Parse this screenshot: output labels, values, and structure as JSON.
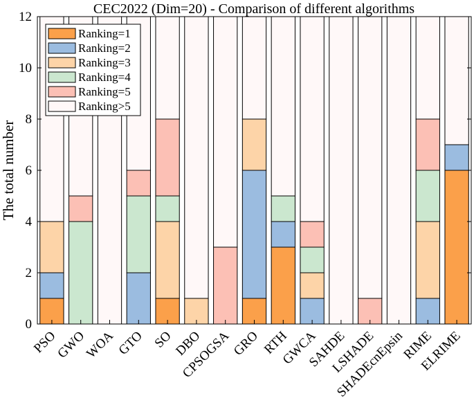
{
  "chart_data": {
    "type": "bar",
    "stacked": true,
    "title": "CEC2022 (Dim=20) - Comparison of different algorithms",
    "xlabel": "",
    "ylabel": "The total number",
    "ylim": [
      0,
      12
    ],
    "yticks": [
      0,
      2,
      4,
      6,
      8,
      10,
      12
    ],
    "legend_position": "top-left",
    "categories": [
      "PSO",
      "GWO",
      "WOA",
      "GTO",
      "SO",
      "DBO",
      "CPSOGSA",
      "GRO",
      "RTH",
      "GWCA",
      "SAHDE",
      "LSHADE",
      "SHADEcnEpsin",
      "RIME",
      "ELRIME"
    ],
    "series": [
      {
        "name": "Ranking=1",
        "color": "#FBA04A",
        "values": [
          1,
          0,
          0,
          0,
          1,
          0,
          0,
          1,
          3,
          0,
          0,
          0,
          0,
          0,
          6
        ]
      },
      {
        "name": "Ranking=2",
        "color": "#9BBCE0",
        "values": [
          1,
          0,
          0,
          2,
          0,
          0,
          0,
          5,
          1,
          1,
          0,
          0,
          0,
          1,
          1
        ]
      },
      {
        "name": "Ranking=3",
        "color": "#FDD4A8",
        "values": [
          2,
          0,
          0,
          0,
          3,
          1,
          0,
          2,
          0,
          1,
          0,
          0,
          0,
          3,
          0
        ]
      },
      {
        "name": "Ranking=4",
        "color": "#CBE7CF",
        "values": [
          0,
          4,
          0,
          3,
          1,
          0,
          0,
          0,
          1,
          1,
          0,
          0,
          0,
          2,
          0
        ]
      },
      {
        "name": "Ranking=5",
        "color": "#FCC0B5",
        "values": [
          0,
          1,
          0,
          1,
          3,
          0,
          3,
          0,
          0,
          1,
          0,
          1,
          0,
          2,
          0
        ]
      },
      {
        "name": "Ranking>5",
        "color": "#FFF8F8",
        "values": [
          8,
          7,
          12,
          6,
          4,
          11,
          9,
          4,
          7,
          8,
          12,
          11,
          12,
          4,
          5
        ]
      }
    ]
  }
}
